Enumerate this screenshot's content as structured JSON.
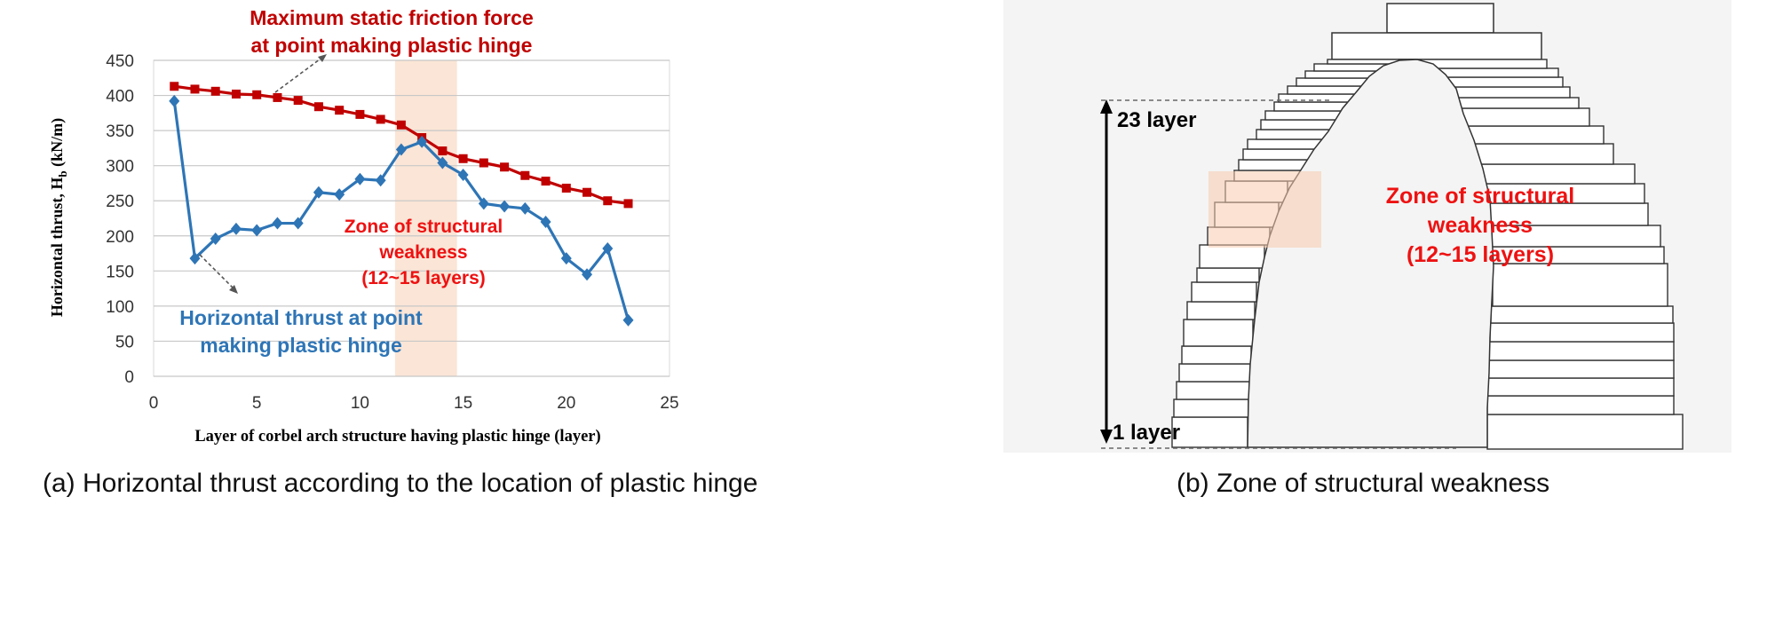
{
  "panel_a": {
    "caption": "(a) Horizontal thrust according to the location of plastic hinge",
    "chart_data": {
      "type": "line",
      "title": "",
      "xlabel": "Layer of corbel arch structure having plastic hinge (layer)",
      "ylabel_main": "Horizontal thrust, H",
      "ylabel_sub": "b",
      "ylabel_unit": "(kN/m)",
      "xlim": [
        0,
        25
      ],
      "ylim": [
        0,
        450
      ],
      "xticks": [
        "0",
        "5",
        "10",
        "15",
        "20",
        "25"
      ],
      "yticks": [
        "0",
        "50",
        "100",
        "150",
        "200",
        "250",
        "300",
        "350",
        "400",
        "450"
      ],
      "grid": "horizontal",
      "highlight_band": [
        11.7,
        14.7
      ],
      "series": [
        {
          "color": "#c00000",
          "marker": "square",
          "x": [
            1,
            2,
            3,
            4,
            5,
            6,
            7,
            8,
            9,
            10,
            11,
            12,
            13,
            14,
            15,
            16,
            17,
            18,
            19,
            20,
            21,
            22,
            23
          ],
          "y": [
            413,
            409,
            406,
            402,
            401,
            397,
            393,
            384,
            379,
            373,
            366,
            358,
            340,
            321,
            310,
            304,
            298,
            286,
            278,
            268,
            262,
            250,
            246
          ]
        },
        {
          "color": "#2e75b6",
          "marker": "diamond",
          "x": [
            1,
            2,
            3,
            4,
            5,
            6,
            7,
            8,
            9,
            10,
            11,
            12,
            13,
            14,
            15,
            16,
            17,
            18,
            19,
            20,
            21,
            22,
            23
          ],
          "y": [
            392,
            168,
            196,
            210,
            208,
            218,
            218,
            262,
            259,
            281,
            279,
            323,
            334,
            304,
            287,
            246,
            242,
            239,
            220,
            168,
            145,
            182,
            80
          ]
        }
      ],
      "annotations": {
        "red_line1": "Maximum static friction force",
        "red_line2": "at point making plastic hinge",
        "blue_line1": "Horizontal thrust at point",
        "blue_line2": "making plastic hinge",
        "zone_line1": "Zone of structural",
        "zone_line2": "weakness",
        "zone_line3": "(12~15 layers)"
      }
    }
  },
  "panel_b": {
    "caption": "(b) Zone of structural weakness",
    "label_top": "23 layer",
    "label_bottom": "1 layer",
    "zone_line1": "Zone of structural",
    "zone_line2": "weakness",
    "zone_line3": "(12~15 layers)"
  },
  "colors": {
    "red": "#c00000",
    "blue": "#2e75b6",
    "highlight": "#fbe5d6",
    "zone_text": "#ee1111"
  }
}
